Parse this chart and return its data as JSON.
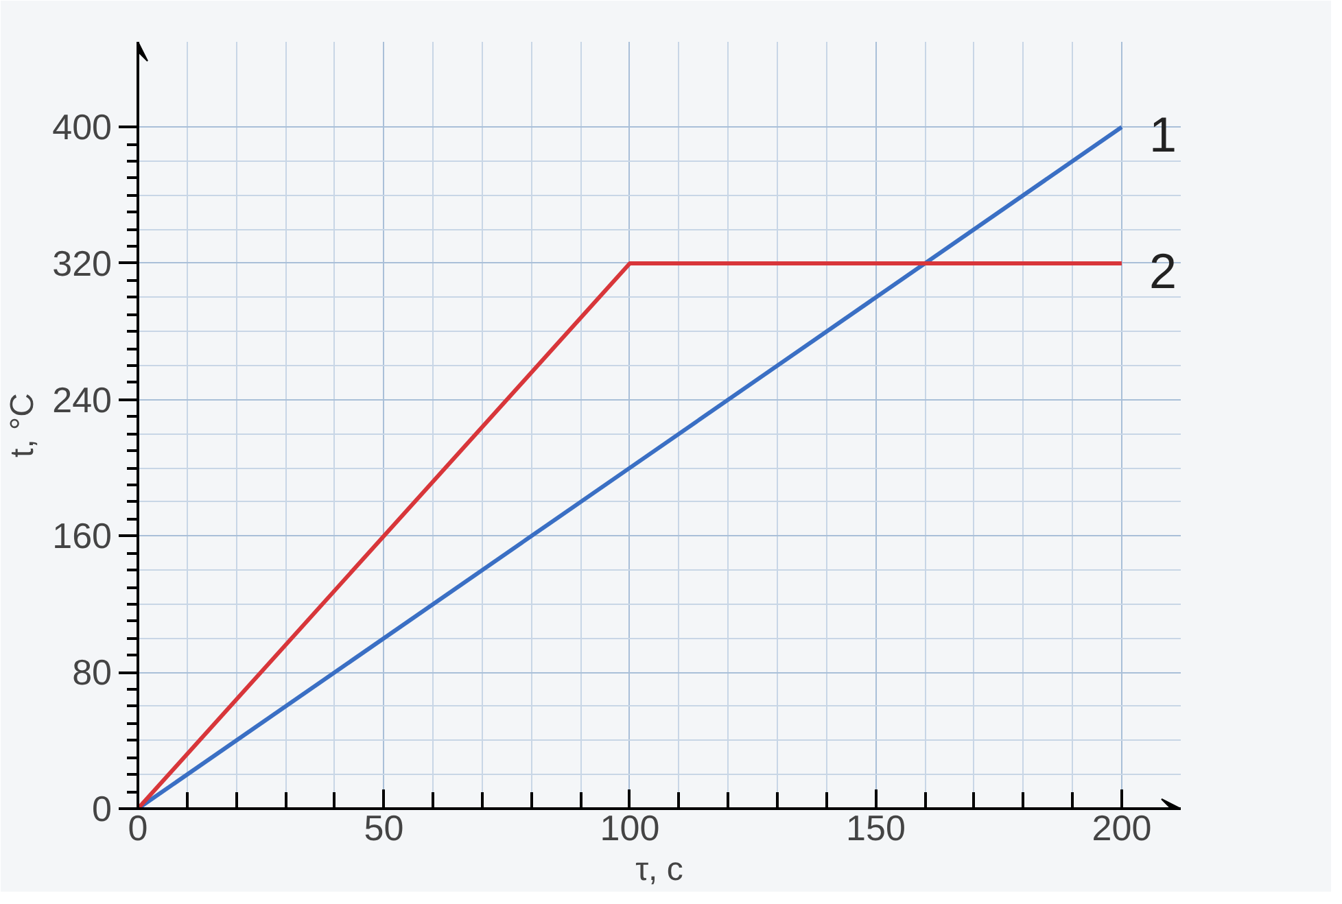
{
  "chart_data": {
    "type": "line",
    "xlabel": "τ, с",
    "ylabel": "t, °C",
    "x": [
      0,
      100,
      200
    ],
    "series": [
      {
        "name": "1",
        "color": "#3a6fc4",
        "values": [
          0,
          200,
          400
        ]
      },
      {
        "name": "2",
        "color": "#d8363a",
        "values": [
          0,
          320,
          320
        ]
      }
    ],
    "xlim": [
      0,
      212
    ],
    "ylim": [
      0,
      450
    ],
    "xticks": [
      0,
      50,
      100,
      150,
      200
    ],
    "yticks": [
      0,
      80,
      160,
      240,
      320,
      400
    ],
    "grid": true,
    "marker": "none",
    "line_style": "solid"
  }
}
